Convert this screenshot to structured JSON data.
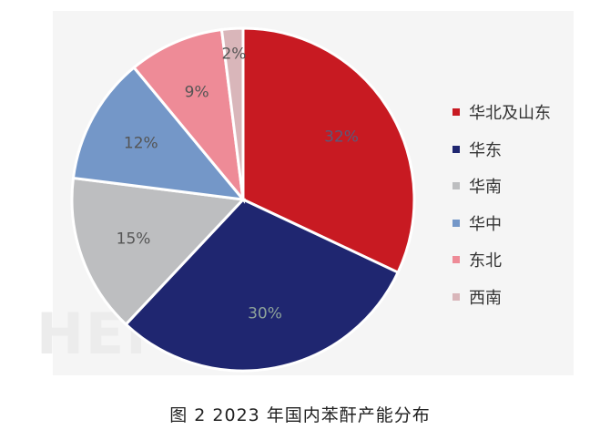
{
  "caption": "图 2  2023 年国内苯酐产能分布",
  "watermark": "HEM",
  "chart_data": {
    "type": "pie",
    "title": "",
    "start_angle_deg": 0,
    "direction": "clockwise",
    "label_format": "{value}%",
    "legend_position": "right",
    "series": [
      {
        "name": "华北及山东",
        "value": 32,
        "color": "#c81a22",
        "label_color": "#5a5a7a"
      },
      {
        "name": "华东",
        "value": 30,
        "color": "#1f2670",
        "label_color": "#8ea39a"
      },
      {
        "name": "华南",
        "value": 15,
        "color": "#bdbec0",
        "label_color": "#555555"
      },
      {
        "name": "华中",
        "value": 12,
        "color": "#7497c8",
        "label_color": "#555555"
      },
      {
        "name": "东北",
        "value": 9,
        "color": "#ee8b97",
        "label_color": "#555555"
      },
      {
        "name": "西南",
        "value": 2,
        "color": "#d9b6ba",
        "label_color": "#555555"
      }
    ]
  }
}
